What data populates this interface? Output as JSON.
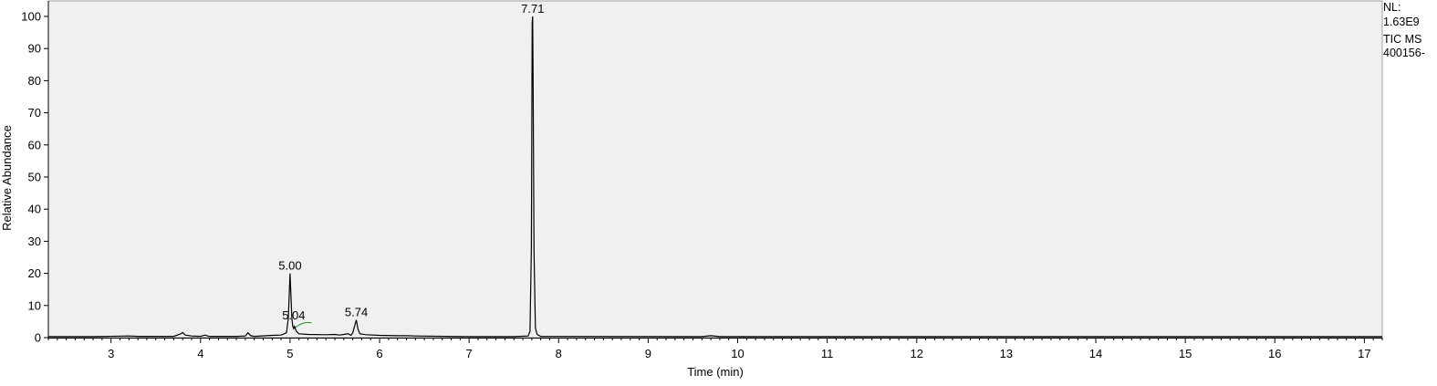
{
  "info": {
    "nl_label": "NL:",
    "nl_value": "1.63E9",
    "scan_label": "TIC  MS",
    "sample": "400156-"
  },
  "colors": {
    "plot_background": "#f0f0f0",
    "trace": "#000000",
    "annotation": "#2e8b2e"
  },
  "chart_data": {
    "type": "line",
    "xlabel": "Time (min)",
    "ylabel": "Relative Abundance",
    "xlim": [
      2.3,
      17.2
    ],
    "ylim": [
      0,
      100
    ],
    "x_ticks": [
      3,
      4,
      5,
      6,
      7,
      8,
      9,
      10,
      11,
      12,
      13,
      14,
      15,
      16,
      17
    ],
    "y_ticks": [
      0,
      10,
      20,
      30,
      40,
      50,
      60,
      70,
      80,
      90,
      100
    ],
    "grid": false,
    "peak_labels": [
      {
        "x": 5.0,
        "y": 20,
        "text": "5.00"
      },
      {
        "x": 5.04,
        "y": 4.5,
        "text": "5.04"
      },
      {
        "x": 5.74,
        "y": 5.5,
        "text": "5.74"
      },
      {
        "x": 7.71,
        "y": 100,
        "text": "7.71"
      }
    ],
    "series": [
      {
        "x": [
          2.3,
          2.8,
          3.2,
          3.3,
          3.7,
          3.78,
          3.8,
          3.83,
          3.9,
          4.0,
          4.05,
          4.08,
          4.1,
          4.4,
          4.5,
          4.53,
          4.56,
          4.6,
          4.8,
          4.9,
          4.96,
          4.98,
          5.0,
          5.02,
          5.03,
          5.04,
          5.05,
          5.07,
          5.1,
          5.2,
          5.4,
          5.5,
          5.55,
          5.6,
          5.65,
          5.68,
          5.7,
          5.72,
          5.74,
          5.76,
          5.78,
          5.85,
          6.0,
          6.2,
          6.3,
          6.4,
          7.0,
          7.5,
          7.66,
          7.68,
          7.695,
          7.705,
          7.71,
          7.715,
          7.725,
          7.74,
          7.76,
          7.8,
          9.6,
          9.7,
          9.8,
          17.2
        ],
        "y": [
          0.3,
          0.3,
          0.5,
          0.4,
          0.4,
          1.2,
          1.6,
          0.8,
          0.5,
          0.4,
          0.8,
          0.5,
          0.4,
          0.4,
          0.5,
          1.5,
          0.6,
          0.4,
          0.7,
          0.8,
          1.5,
          6,
          20,
          6,
          3.5,
          2.8,
          3.5,
          2,
          1.2,
          1,
          0.9,
          1,
          0.8,
          1,
          1.2,
          0.7,
          1.5,
          3.5,
          5.5,
          2.5,
          1.2,
          0.9,
          0.7,
          0.6,
          0.6,
          0.5,
          0.3,
          0.3,
          0.5,
          2,
          28,
          98,
          100,
          80,
          27,
          3,
          1,
          0.4,
          0.3,
          0.6,
          0.3,
          0.3
        ]
      }
    ]
  }
}
